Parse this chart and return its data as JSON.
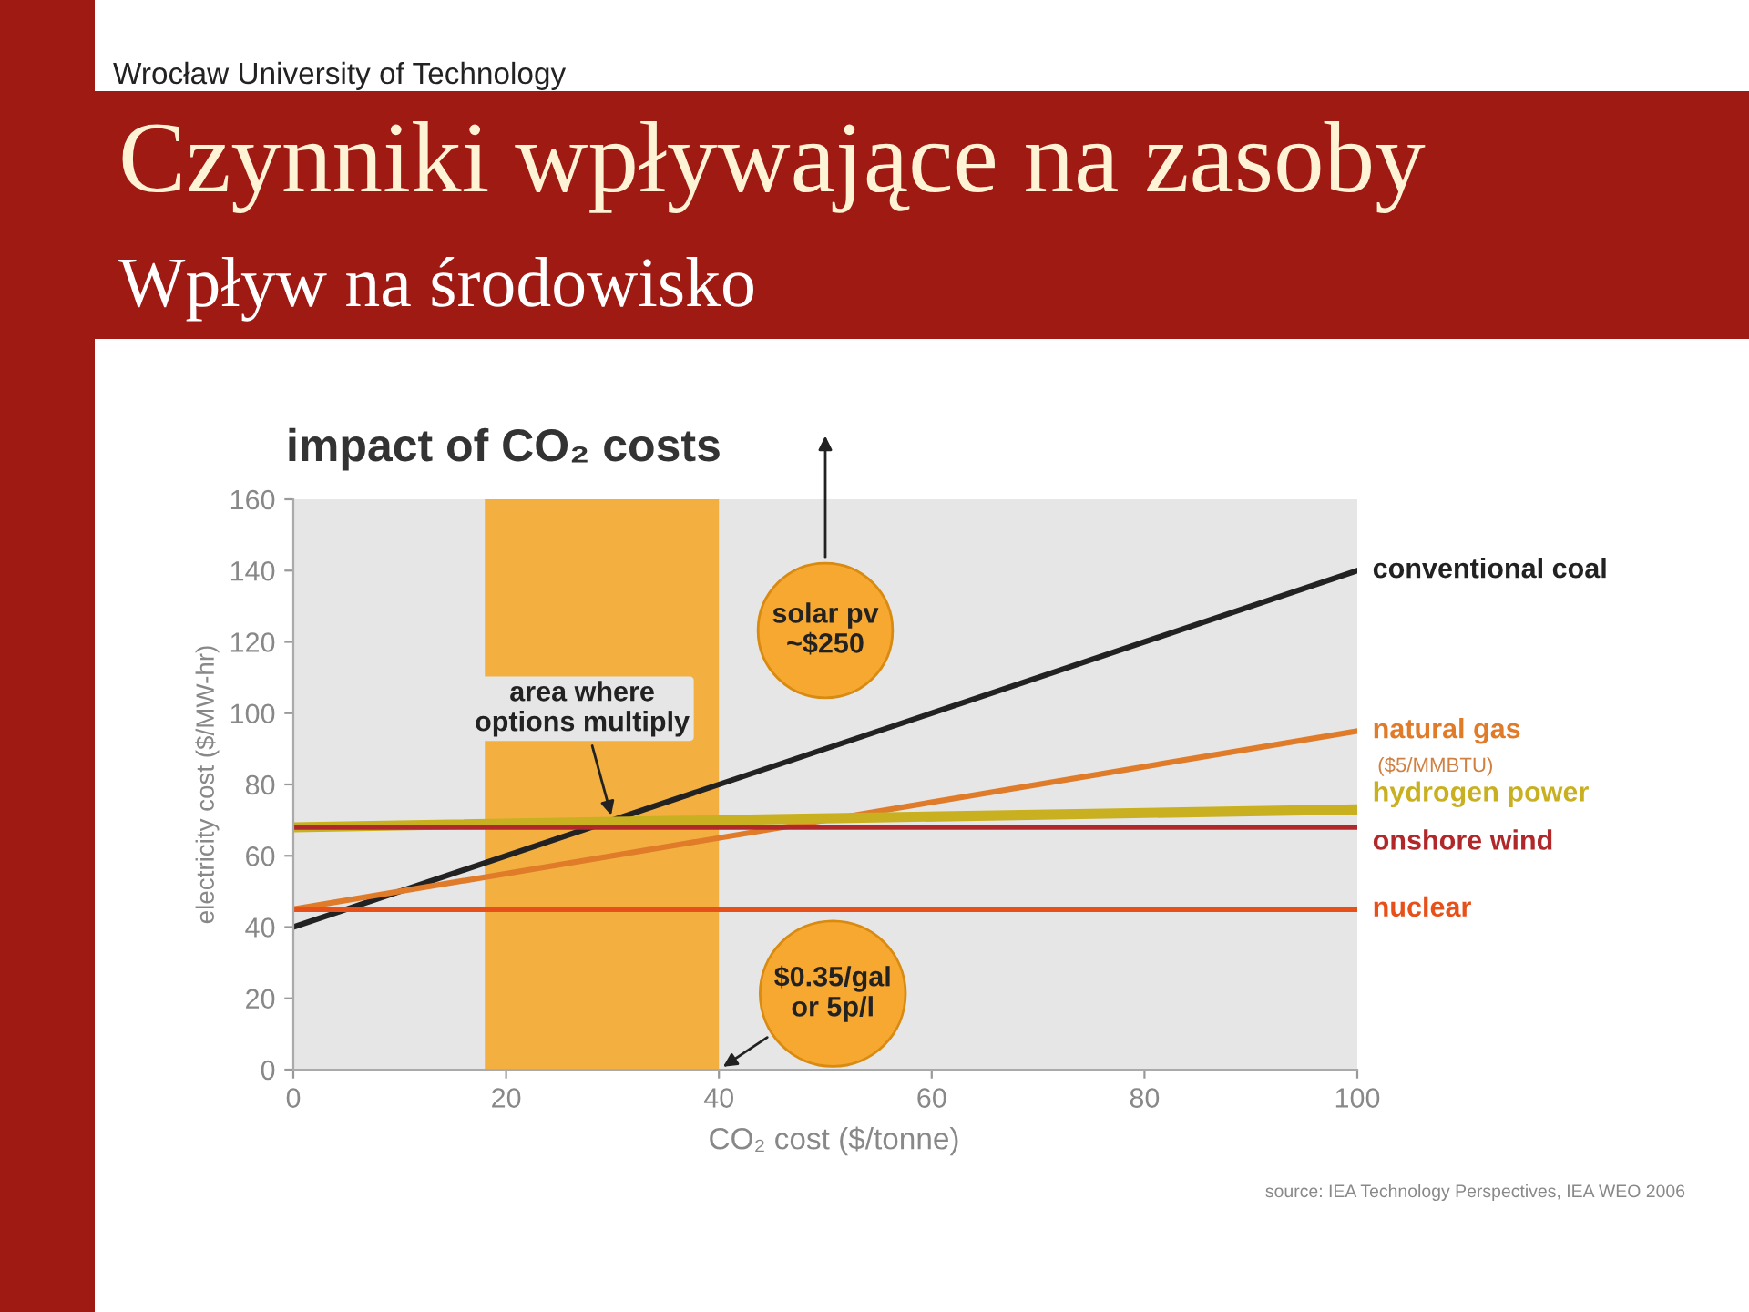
{
  "chart_data": {
    "type": "line",
    "title": "Czynniki wpływające na zasoby",
    "subtitle": "Wpływ na środowisko",
    "xlabel": "CO₂ cost ($/tonne)",
    "ylabel": "electricity cost ($/MW-hr)",
    "x": [
      0,
      100
    ],
    "series": [
      {
        "name": "conventional coal",
        "color": "#222222",
        "values": [
          40,
          140
        ]
      },
      {
        "name": "natural gas",
        "color": "#e07b2a",
        "values": [
          45,
          95
        ]
      },
      {
        "name": "hydrogen power",
        "color": "#c8b020",
        "values": [
          68,
          73
        ]
      },
      {
        "name": "onshore wind",
        "color": "#b0282a",
        "values": [
          68,
          68
        ]
      },
      {
        "name": "nuclear",
        "color": "#e8501a",
        "values": [
          45,
          45
        ]
      }
    ],
    "bands": [
      {
        "axis": "x",
        "from": 18,
        "to": 40,
        "color": "#f5a623"
      }
    ],
    "annotations": [
      "Wrocław University of Technology",
      "impact of CO₂ costs",
      {
        "text": "area where\noptions multiply",
        "x": 30,
        "y": 70
      },
      "solar pv\n~$250",
      {
        "text": "$0.35/gal\nor 5p/l",
        "x": 40,
        "y": 0
      },
      {
        "text": "($5/MMBTU)",
        "x": 100,
        "y": 95
      },
      "source: IEA Technology Perspectives, IEA WEO 2006"
    ],
    "xlim": [
      0,
      100
    ],
    "ylim": [
      0,
      160
    ],
    "xticks": [
      0,
      20,
      40,
      60,
      80,
      100
    ],
    "yticks": [
      0,
      20,
      40,
      60,
      80,
      100,
      120,
      140,
      160
    ],
    "grid": false,
    "legend": false,
    "marker": "none",
    "line_style": "solid"
  }
}
